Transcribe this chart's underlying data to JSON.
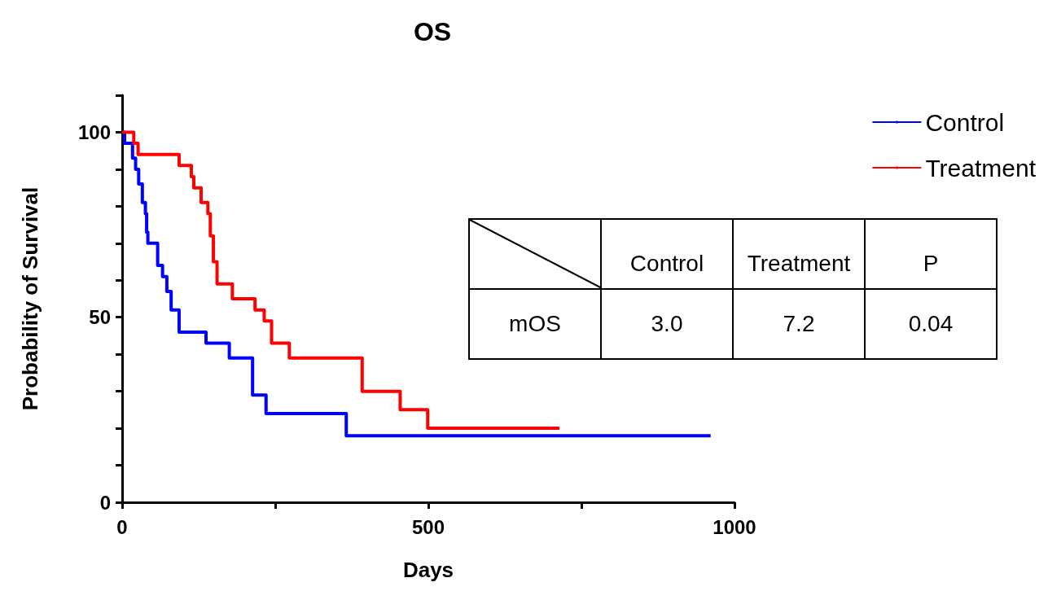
{
  "chart_data": {
    "type": "step",
    "title": "OS",
    "xlabel": "Days",
    "ylabel": "Probability of Survival",
    "xlim": [
      0,
      1000
    ],
    "xticks": [
      0,
      {
        "value": 250,
        "label": null
      },
      500,
      {
        "value": 750,
        "label": null
      },
      1000
    ],
    "ylim": [
      0,
      110
    ],
    "yticks": [
      0,
      {
        "value": 10,
        "label": null
      },
      {
        "value": 20,
        "label": null
      },
      {
        "value": 30,
        "label": null
      },
      {
        "value": 40,
        "label": null
      },
      50,
      {
        "value": 60,
        "label": null
      },
      {
        "value": 70,
        "label": null
      },
      {
        "value": 80,
        "label": null
      },
      {
        "value": 90,
        "label": null
      },
      100,
      {
        "value": 110,
        "label": null
      }
    ],
    "grid": false,
    "legend": "top right",
    "marker": "none",
    "line_style": "solid",
    "series": [
      {
        "name": "Control",
        "color": "#0000ff",
        "x": [
          0,
          4,
          17,
          22,
          27,
          33,
          38,
          40,
          42,
          58,
          66,
          73,
          80,
          93,
          137,
          175,
          213,
          235,
          366,
          961
        ],
        "values": [
          100,
          97,
          93,
          90,
          86,
          81,
          78,
          73,
          70,
          64,
          61,
          57,
          52,
          46,
          43,
          39,
          29,
          24,
          18,
          18
        ]
      },
      {
        "name": "Treatment",
        "color": "#ff0000",
        "x": [
          0,
          19,
          26,
          93,
          113,
          117,
          129,
          140,
          144,
          149,
          155,
          180,
          217,
          232,
          244,
          273,
          392,
          454,
          499,
          714
        ],
        "values": [
          100,
          97,
          94,
          91,
          88,
          85,
          81,
          78,
          72,
          65,
          59,
          55,
          52,
          49,
          43,
          39,
          30,
          25,
          20,
          20
        ]
      }
    ],
    "annotations": [
      "Control",
      "Treatment",
      "P",
      "mOS",
      "3.0",
      "7.2",
      "0.04"
    ]
  }
}
